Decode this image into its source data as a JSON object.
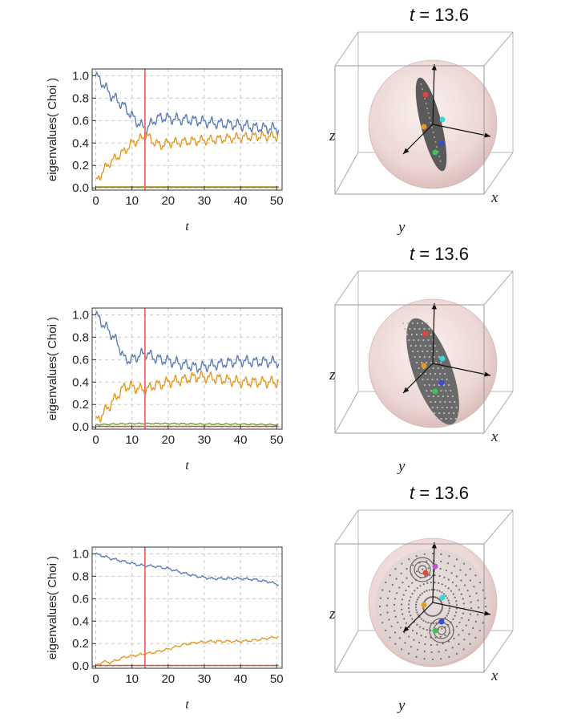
{
  "chart_data": [
    {
      "type": "line",
      "ylabel": "eigenvalues( Choi )",
      "xlabel": "t",
      "xlim": [
        -1,
        51.5
      ],
      "ylim": [
        -0.02,
        1.06
      ],
      "xticks": [
        0,
        10,
        20,
        30,
        40,
        50
      ],
      "yticks": [
        "0.0",
        "0.2",
        "0.4",
        "0.6",
        "0.8",
        "1.0"
      ],
      "grid": true,
      "marker_t": 13.6,
      "series": [
        {
          "color": "#5b7fbd",
          "points": [
            [
              0,
              1.0
            ],
            [
              2,
              0.93
            ],
            [
              4,
              0.83
            ],
            [
              6,
              0.78
            ],
            [
              8,
              0.72
            ],
            [
              10,
              0.64
            ],
            [
              12,
              0.57
            ],
            [
              14,
              0.52
            ],
            [
              16,
              0.6
            ],
            [
              18,
              0.63
            ],
            [
              20,
              0.62
            ],
            [
              24,
              0.61
            ],
            [
              28,
              0.6
            ],
            [
              32,
              0.58
            ],
            [
              36,
              0.57
            ],
            [
              40,
              0.56
            ],
            [
              44,
              0.54
            ],
            [
              48,
              0.53
            ],
            [
              50,
              0.53
            ]
          ],
          "wiggle": 0.035
        },
        {
          "color": "#e69a24",
          "points": [
            [
              0,
              0.05
            ],
            [
              2,
              0.15
            ],
            [
              4,
              0.23
            ],
            [
              6,
              0.28
            ],
            [
              8,
              0.33
            ],
            [
              10,
              0.4
            ],
            [
              12,
              0.43
            ],
            [
              14,
              0.47
            ],
            [
              16,
              0.41
            ],
            [
              18,
              0.38
            ],
            [
              20,
              0.4
            ],
            [
              24,
              0.41
            ],
            [
              28,
              0.42
            ],
            [
              32,
              0.43
            ],
            [
              36,
              0.44
            ],
            [
              40,
              0.45
            ],
            [
              44,
              0.46
            ],
            [
              48,
              0.46
            ],
            [
              50,
              0.46
            ]
          ],
          "wiggle": 0.03
        },
        {
          "color": "#d4903a",
          "points": [
            [
              0,
              0.01
            ],
            [
              50,
              0.01
            ]
          ],
          "wiggle": 0.0
        },
        {
          "color": "#6b9c3a",
          "points": [
            [
              0,
              0.005
            ],
            [
              50,
              0.005
            ]
          ],
          "wiggle": 0.0
        }
      ]
    },
    {
      "type": "line",
      "ylabel": "eigenvalues( Choi )",
      "xlabel": "t",
      "xlim": [
        -1,
        51.5
      ],
      "ylim": [
        -0.02,
        1.06
      ],
      "xticks": [
        0,
        10,
        20,
        30,
        40,
        50
      ],
      "yticks": [
        "0.0",
        "0.2",
        "0.4",
        "0.6",
        "0.8",
        "1.0"
      ],
      "grid": true,
      "marker_t": 13.6,
      "series": [
        {
          "color": "#5b7fbd",
          "points": [
            [
              0,
              1.0
            ],
            [
              2,
              0.92
            ],
            [
              4,
              0.84
            ],
            [
              6,
              0.75
            ],
            [
              8,
              0.6
            ],
            [
              10,
              0.6
            ],
            [
              12,
              0.64
            ],
            [
              14,
              0.66
            ],
            [
              16,
              0.62
            ],
            [
              18,
              0.6
            ],
            [
              20,
              0.59
            ],
            [
              24,
              0.56
            ],
            [
              28,
              0.53
            ],
            [
              32,
              0.55
            ],
            [
              36,
              0.57
            ],
            [
              40,
              0.59
            ],
            [
              44,
              0.58
            ],
            [
              48,
              0.58
            ],
            [
              50,
              0.58
            ]
          ],
          "wiggle": 0.035
        },
        {
          "color": "#e69a24",
          "points": [
            [
              0,
              0.05
            ],
            [
              2,
              0.12
            ],
            [
              4,
              0.2
            ],
            [
              6,
              0.28
            ],
            [
              8,
              0.36
            ],
            [
              10,
              0.36
            ],
            [
              12,
              0.34
            ],
            [
              14,
              0.33
            ],
            [
              16,
              0.37
            ],
            [
              18,
              0.38
            ],
            [
              20,
              0.4
            ],
            [
              24,
              0.42
            ],
            [
              28,
              0.45
            ],
            [
              32,
              0.44
            ],
            [
              36,
              0.42
            ],
            [
              40,
              0.4
            ],
            [
              44,
              0.4
            ],
            [
              48,
              0.4
            ],
            [
              50,
              0.4
            ]
          ],
          "wiggle": 0.035
        },
        {
          "color": "#6b9c3a",
          "points": [
            [
              0,
              0.02
            ],
            [
              10,
              0.03
            ],
            [
              20,
              0.03
            ],
            [
              30,
              0.025
            ],
            [
              40,
              0.025
            ],
            [
              50,
              0.02
            ]
          ],
          "wiggle": 0.004
        },
        {
          "color": "#c85c3a",
          "points": [
            [
              0,
              0.005
            ],
            [
              50,
              0.005
            ]
          ],
          "wiggle": 0.0
        }
      ]
    },
    {
      "type": "line",
      "ylabel": "eigenvalues( Choi )",
      "xlabel": "t",
      "xlim": [
        -1,
        51.5
      ],
      "ylim": [
        -0.02,
        1.06
      ],
      "xticks": [
        0,
        10,
        20,
        30,
        40,
        50
      ],
      "yticks": [
        "0.0",
        "0.2",
        "0.4",
        "0.6",
        "0.8",
        "1.0"
      ],
      "grid": true,
      "marker_t": 13.6,
      "series": [
        {
          "color": "#5b7fbd",
          "points": [
            [
              0,
              1.0
            ],
            [
              4,
              0.96
            ],
            [
              8,
              0.93
            ],
            [
              12,
              0.9
            ],
            [
              16,
              0.89
            ],
            [
              20,
              0.87
            ],
            [
              24,
              0.83
            ],
            [
              28,
              0.8
            ],
            [
              32,
              0.78
            ],
            [
              36,
              0.78
            ],
            [
              40,
              0.78
            ],
            [
              44,
              0.77
            ],
            [
              48,
              0.75
            ],
            [
              50,
              0.73
            ]
          ],
          "wiggle": 0.008
        },
        {
          "color": "#e69a24",
          "points": [
            [
              0,
              0.0
            ],
            [
              2,
              0.04
            ],
            [
              4,
              0.03
            ],
            [
              8,
              0.08
            ],
            [
              12,
              0.1
            ],
            [
              16,
              0.12
            ],
            [
              20,
              0.15
            ],
            [
              24,
              0.19
            ],
            [
              28,
              0.21
            ],
            [
              32,
              0.22
            ],
            [
              36,
              0.22
            ],
            [
              40,
              0.22
            ],
            [
              44,
              0.23
            ],
            [
              48,
              0.25
            ],
            [
              50,
              0.26
            ]
          ],
          "wiggle": 0.008
        },
        {
          "color": "#c85c3a",
          "points": [
            [
              0,
              0.005
            ],
            [
              50,
              0.005
            ]
          ],
          "wiggle": 0.0
        }
      ]
    }
  ],
  "spheres": [
    {
      "title_var": "t",
      "title_eq": " = 13.6",
      "labels": {
        "z": "z",
        "x": "x",
        "y": "y"
      },
      "shape": "thin-ellipse",
      "dots": [
        {
          "color": "#e0453a"
        },
        {
          "color": "#39d7d8"
        },
        {
          "color": "#e69a24"
        },
        {
          "color": "#3a4dd1"
        },
        {
          "color": "#40c25a"
        }
      ]
    },
    {
      "title_var": "t",
      "title_eq": " = 13.6",
      "labels": {
        "z": "z",
        "x": "x",
        "y": "y"
      },
      "shape": "wide-ellipse",
      "dots": [
        {
          "color": "#e0453a"
        },
        {
          "color": "#39d7d8"
        },
        {
          "color": "#e69a24"
        },
        {
          "color": "#3a4dd1"
        },
        {
          "color": "#40c25a"
        }
      ]
    },
    {
      "title_var": "t",
      "title_eq": " = 13.6",
      "labels": {
        "z": "z",
        "x": "x",
        "y": "y"
      },
      "shape": "full-sphere",
      "dots": [
        {
          "color": "#e0453a"
        },
        {
          "color": "#39d7d8"
        },
        {
          "color": "#e69a24"
        },
        {
          "color": "#3a4dd1"
        },
        {
          "color": "#40c25a"
        },
        {
          "color": "#c24fd4"
        }
      ]
    }
  ]
}
